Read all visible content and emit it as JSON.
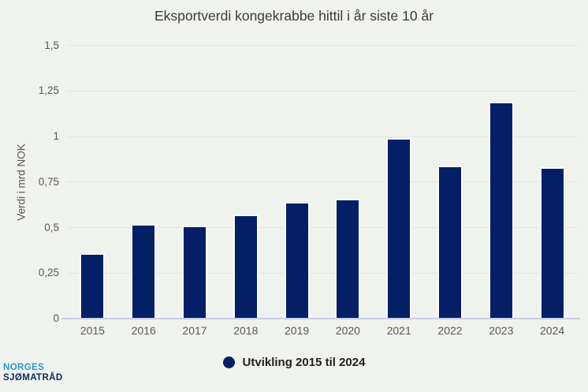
{
  "chart_data": {
    "type": "bar",
    "title": "Eksportverdi kongekrabbe hittil i år siste 10 år",
    "xlabel": "",
    "ylabel": "Verdi i mrd NOK",
    "categories": [
      "2015",
      "2016",
      "2017",
      "2018",
      "2019",
      "2020",
      "2021",
      "2022",
      "2023",
      "2024"
    ],
    "values": [
      0.36,
      0.52,
      0.51,
      0.57,
      0.64,
      0.66,
      0.99,
      0.84,
      1.19,
      0.83
    ],
    "series_name": "Utvikling 2015 til 2024",
    "unit": "mrd NOK",
    "ylim": [
      0,
      1.5
    ],
    "ytick_step": 0.25,
    "ytick_labels": [
      "0",
      "0,25",
      "0,5",
      "0,75",
      "1",
      "1,25",
      "1,5"
    ],
    "grid": true,
    "legend_position": "bottom",
    "bar_color": "#041f66",
    "bar_stroke_color": "#fafaf8",
    "background_color": "#f0f2ee",
    "gridline_color": "#e2e4df",
    "axis_line_color": "#c8cee9",
    "tick_label_color": "#595959",
    "title_color": "#3b3b3b"
  },
  "legend": {
    "label": "Utvikling 2015 til 2024",
    "marker_color": "#041f66"
  },
  "logo": {
    "line1": "NORGES",
    "line2": "SJØMATRÅD",
    "line1_color": "#2b97cf",
    "line2_color": "#0e2b5c"
  }
}
